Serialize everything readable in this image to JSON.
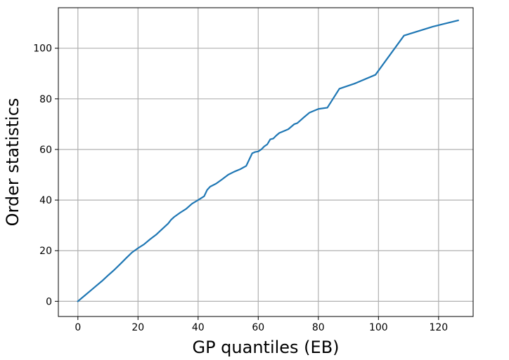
{
  "chart_data": {
    "type": "line",
    "title": "",
    "xlabel": "GP quantiles (EB)",
    "ylabel": "Order statistics",
    "xlim": [
      -6.5,
      131.5
    ],
    "ylim": [
      -6,
      116
    ],
    "x_ticks": [
      0,
      20,
      40,
      60,
      80,
      100,
      120
    ],
    "y_ticks": [
      0,
      20,
      40,
      60,
      80,
      100
    ],
    "x_tick_labels": [
      "0",
      "20",
      "40",
      "60",
      "80",
      "100",
      "120"
    ],
    "y_tick_labels": [
      "0",
      "20",
      "40",
      "60",
      "80",
      "100"
    ],
    "grid": true,
    "legend": "none",
    "series": [
      {
        "color": "#1f77b4",
        "x": [
          0,
          2,
          4,
          6,
          8,
          10,
          12,
          14,
          16,
          18,
          20,
          22,
          24,
          26,
          28,
          30,
          31,
          32,
          34,
          36,
          38,
          40,
          42,
          43,
          44,
          46,
          48,
          50,
          52,
          54,
          56,
          57,
          58,
          59,
          60,
          61,
          62,
          63,
          64,
          65,
          66,
          67,
          68,
          70,
          72,
          73,
          75,
          77,
          80,
          83,
          87,
          92,
          99,
          108.5,
          118,
          126.5
        ],
        "y": [
          0,
          2,
          4,
          6,
          8,
          10.2,
          12.3,
          14.6,
          17,
          19.3,
          21,
          22.5,
          24.5,
          26.3,
          28.5,
          30.7,
          32.2,
          33.3,
          35,
          36.5,
          38.6,
          40,
          41.5,
          44,
          45.3,
          46.5,
          48.2,
          50,
          51.2,
          52.2,
          53.5,
          56,
          58.5,
          59,
          59.2,
          60,
          61.2,
          62,
          64,
          64.3,
          65.5,
          66.5,
          67,
          68,
          70,
          70.4,
          72.5,
          74.5,
          76,
          76.5,
          84,
          86,
          89.5,
          105,
          108.5,
          111
        ]
      }
    ]
  }
}
